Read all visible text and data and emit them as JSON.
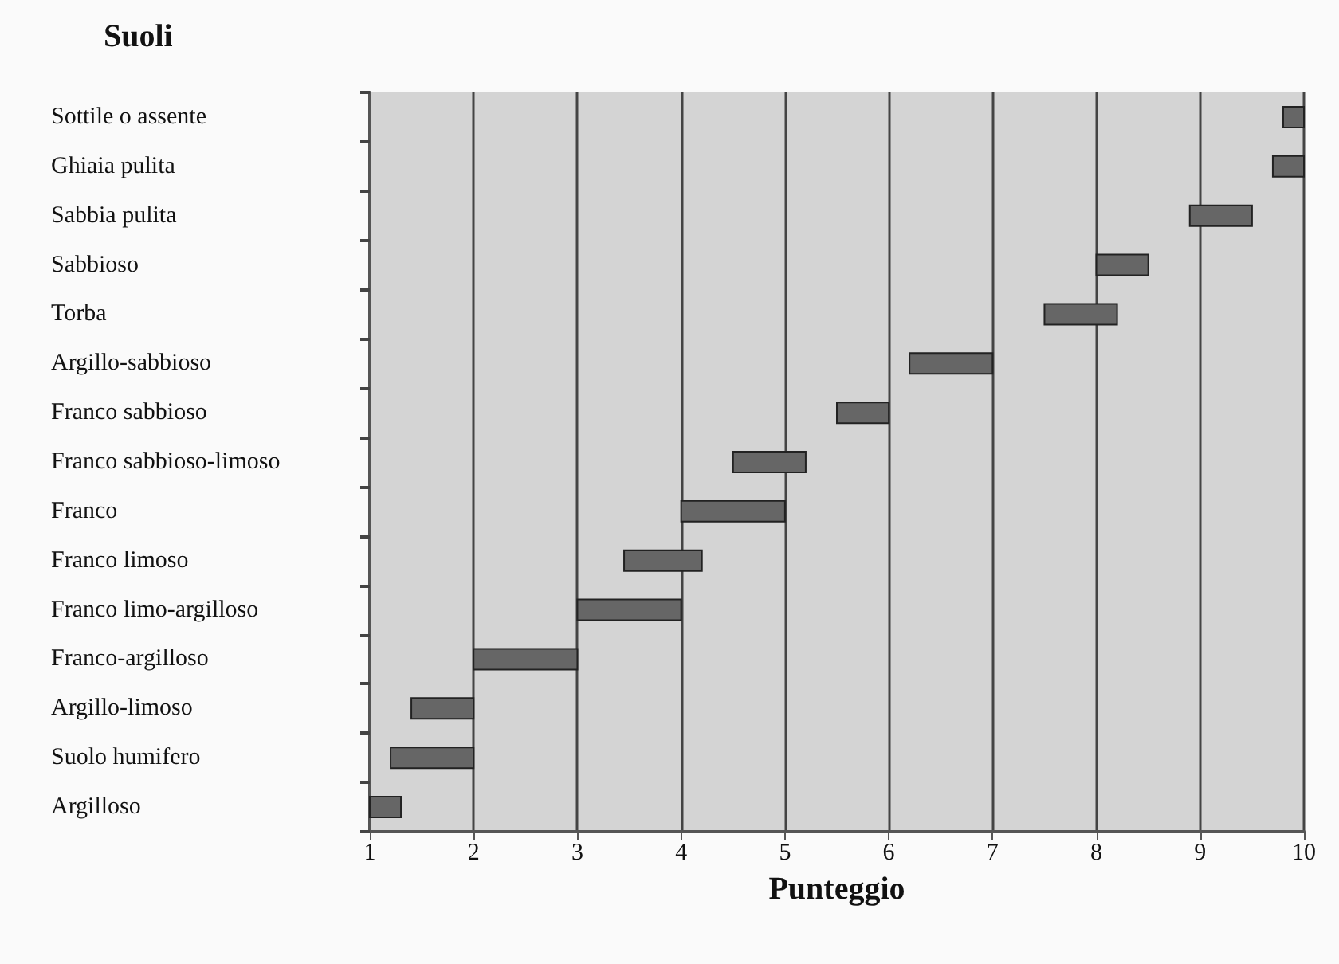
{
  "chart_data": {
    "type": "bar",
    "orientation": "horizontal",
    "title": "Suoli",
    "xlabel": "Punteggio",
    "categories": [
      "Sottile o assente",
      "Ghiaia pulita",
      "Sabbia pulita",
      "Sabbioso",
      "Torba",
      "Argillo-sabbioso",
      "Franco sabbioso",
      "Franco sabbioso-limoso",
      "Franco",
      "Franco limoso",
      "Franco limo-argilloso",
      "Franco-argilloso",
      "Argillo-limoso",
      "Suolo humifero",
      "Argilloso"
    ],
    "base": [
      9.8,
      9.7,
      8.9,
      8.0,
      7.5,
      6.2,
      5.5,
      4.5,
      4.0,
      3.45,
      3.0,
      2.0,
      1.4,
      1.2,
      1.0
    ],
    "values": [
      0.2,
      0.3,
      0.6,
      0.5,
      0.7,
      0.8,
      0.5,
      0.7,
      1.0,
      0.75,
      1.0,
      1.0,
      0.6,
      0.8,
      0.3
    ],
    "color": "#666666",
    "xlim": [
      1,
      10
    ],
    "xticks": [
      1,
      2,
      3,
      4,
      5,
      6,
      7,
      8,
      9,
      10
    ],
    "grid": "x"
  }
}
